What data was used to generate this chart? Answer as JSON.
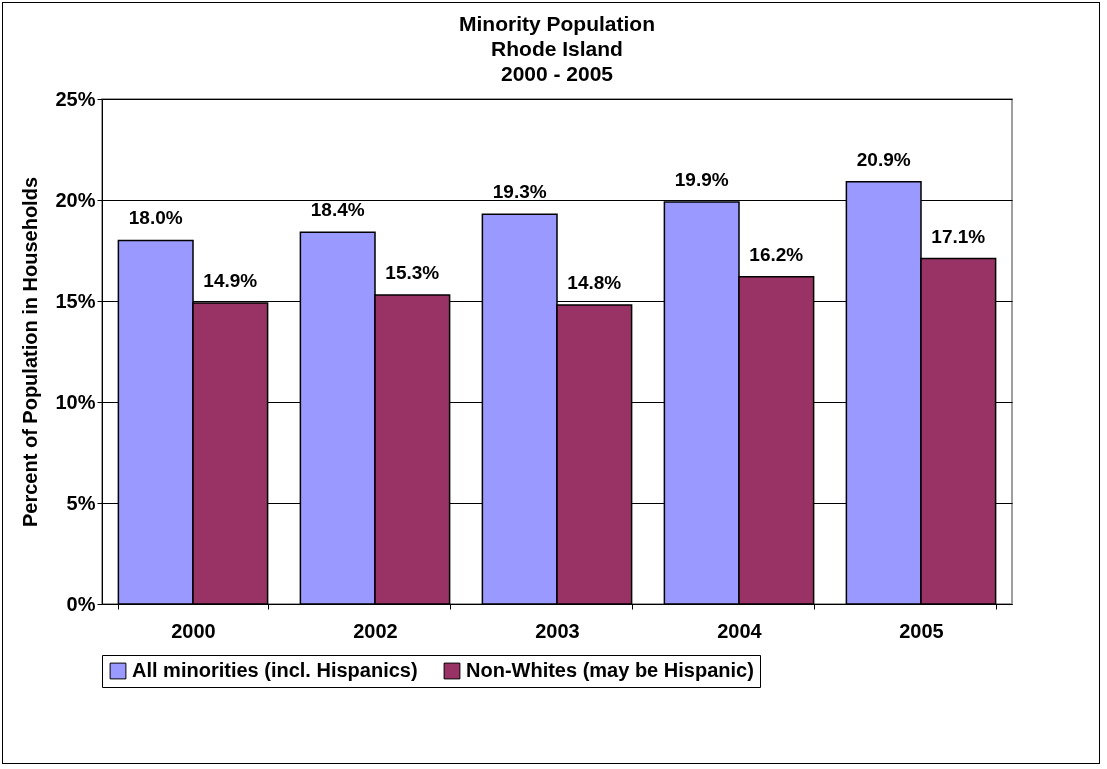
{
  "chart_data": {
    "type": "bar",
    "title": "Minority Population\nRhode Island\n2000 - 2005",
    "ylabel": "Percent of Population in Households",
    "categories": [
      "2000",
      "2002",
      "2003",
      "2004",
      "2005"
    ],
    "series": [
      {
        "name": "All minorities (incl. Hispanics)",
        "color": "#9999ff",
        "values": [
          18.0,
          18.4,
          19.3,
          19.9,
          20.9
        ],
        "value_labels": [
          "18.0%",
          "18.4%",
          "19.3%",
          "19.9%",
          "20.9%"
        ]
      },
      {
        "name": "Non-Whites (may be Hispanic)",
        "color": "#993366",
        "values": [
          14.9,
          15.3,
          14.8,
          16.2,
          17.1
        ],
        "value_labels": [
          "14.9%",
          "15.3%",
          "14.8%",
          "16.2%",
          "17.1%"
        ]
      }
    ],
    "ylim": [
      0,
      25
    ],
    "yticks": [
      {
        "value": 0,
        "label": "0%"
      },
      {
        "value": 5,
        "label": "5%"
      },
      {
        "value": 10,
        "label": "10%"
      },
      {
        "value": 15,
        "label": "15%"
      },
      {
        "value": 20,
        "label": "20%"
      },
      {
        "value": 25,
        "label": "25%"
      }
    ],
    "grid": "y",
    "legend": "bottom"
  }
}
